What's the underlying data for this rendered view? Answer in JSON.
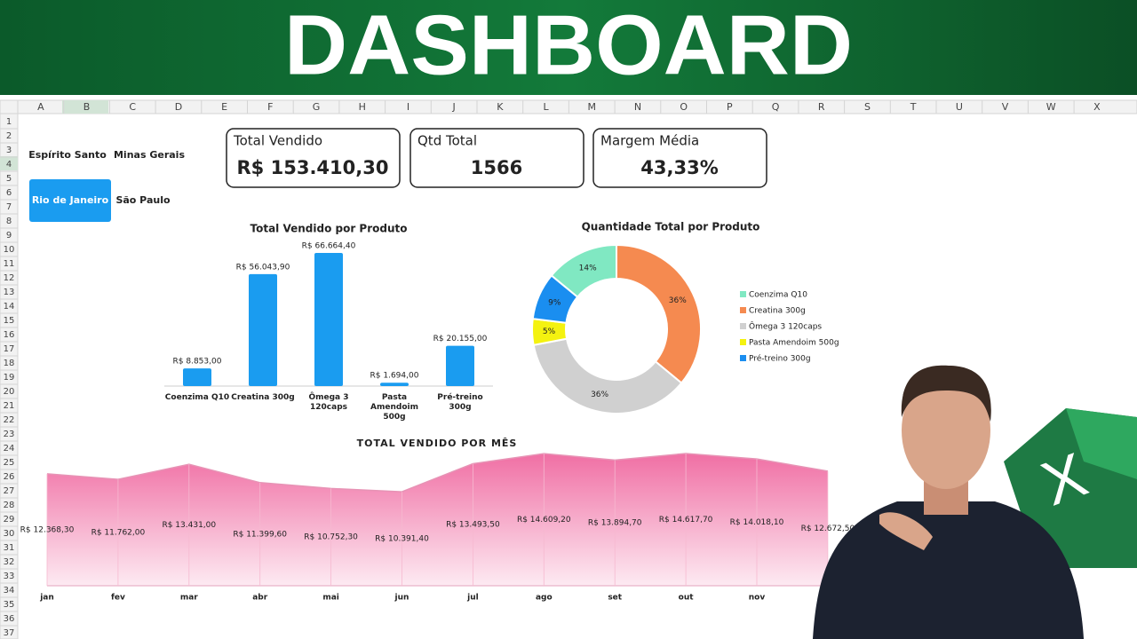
{
  "header": {
    "title": "DASHBOARD"
  },
  "sheet": {
    "columns": [
      "A",
      "B",
      "C",
      "D",
      "E",
      "F",
      "G",
      "H",
      "I",
      "J",
      "K",
      "L",
      "M",
      "N",
      "O",
      "P",
      "Q",
      "R",
      "S",
      "T",
      "U",
      "V",
      "W",
      "X"
    ],
    "rows": [
      1,
      2,
      3,
      4,
      5,
      6,
      7,
      8,
      9,
      10,
      11,
      12,
      13,
      14,
      15,
      16,
      17,
      18,
      19,
      20,
      21,
      22,
      23,
      24,
      25,
      26,
      27,
      28,
      29,
      30,
      31,
      32,
      33,
      34,
      35,
      36,
      37
    ]
  },
  "slicer": {
    "items": [
      {
        "label": "Espírito Santo",
        "selected": false
      },
      {
        "label": "Minas Gerais",
        "selected": false
      },
      {
        "label": "Rio de Janeiro",
        "selected": true
      },
      {
        "label": "São Paulo",
        "selected": false
      }
    ]
  },
  "kpis": [
    {
      "label": "Total Vendido",
      "value": "R$ 153.410,30"
    },
    {
      "label": "Qtd Total",
      "value": "1566"
    },
    {
      "label": "Margem Média",
      "value": "43,33%"
    }
  ],
  "chart_data": [
    {
      "type": "bar",
      "title": "Total Vendido por Produto",
      "categories": [
        "Coenzima Q10",
        "Creatina 300g",
        "Ômega 3 120caps",
        "Pasta Amendoim 500g",
        "Pré-treino 300g"
      ],
      "values": [
        8853,
        56043.9,
        66664.4,
        1694,
        20155
      ],
      "value_labels": [
        "R$ 8.853,00",
        "R$ 56.043,90",
        "R$ 66.664,40",
        "R$ 1.694,00",
        "R$ 20.155,00"
      ],
      "color": "#1a9cf0"
    },
    {
      "type": "pie",
      "title": "Quantidade Total por Produto",
      "donut": true,
      "categories": [
        "Coenzima Q10",
        "Creatina 300g",
        "Ômega 3 120caps",
        "Pasta Amendoim 500g",
        "Pré-treino 300g"
      ],
      "values": [
        14,
        36,
        36,
        5,
        9
      ],
      "value_labels": [
        "14%",
        "36%",
        "36%",
        "5%",
        "9%"
      ],
      "colors": [
        "#80e8c2",
        "#f58a50",
        "#d0d0d0",
        "#f4f210",
        "#1a8ef0"
      ],
      "legend": "right"
    },
    {
      "type": "area",
      "title": "TOTAL VENDIDO POR MÊS",
      "categories": [
        "jan",
        "fev",
        "mar",
        "abr",
        "mai",
        "jun",
        "jul",
        "ago",
        "set",
        "out",
        "nov",
        null
      ],
      "values": [
        12368.3,
        11762,
        13431,
        11399.6,
        10752.3,
        10391.4,
        13493.5,
        14609.2,
        13894.7,
        14617.7,
        14018.1,
        12672.5
      ],
      "value_labels": [
        "R$ 12.368,30",
        "R$ 11.762,00",
        "R$ 13.431,00",
        "R$ 11.399,60",
        "R$ 10.752,30",
        "R$ 10.391,40",
        "R$ 13.493,50",
        "R$ 14.609,20",
        "R$ 13.894,70",
        "R$ 14.617,70",
        "R$ 14.018,10",
        "R$ 12.672,50"
      ],
      "color": "#f06fa4"
    }
  ]
}
